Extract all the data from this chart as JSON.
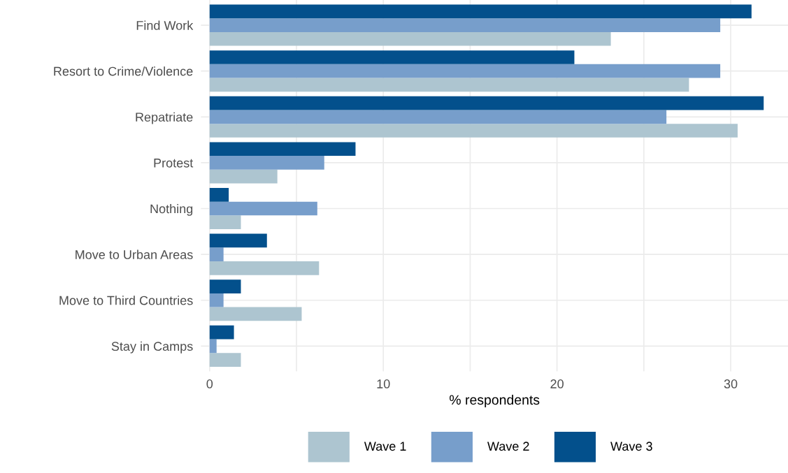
{
  "chart_data": {
    "type": "bar",
    "orientation": "horizontal",
    "xlabel": "% respondents",
    "categories": [
      "Find Work",
      "Resort to Crime/Violence",
      "Repatriate",
      "Protest",
      "Nothing",
      "Move to Urban Areas",
      "Move to Third Countries",
      "Stay in Camps"
    ],
    "series": [
      {
        "name": "Wave 1",
        "color": "#adc5d0",
        "values": [
          23.1,
          27.6,
          30.4,
          3.9,
          1.8,
          6.3,
          5.3,
          1.8
        ]
      },
      {
        "name": "Wave 2",
        "color": "#779ecb",
        "values": [
          29.4,
          29.4,
          26.3,
          6.6,
          6.2,
          0.8,
          0.8,
          0.4
        ]
      },
      {
        "name": "Wave 3",
        "color": "#03508c",
        "values": [
          31.2,
          21.0,
          31.9,
          8.4,
          1.1,
          3.3,
          1.8,
          1.4
        ]
      }
    ],
    "xlim": [
      -0.5,
      33.3
    ],
    "xticks": [
      0,
      {
        "value": 5,
        "label": null
      },
      10,
      {
        "value": 15,
        "label": null
      },
      20,
      {
        "value": 25,
        "label": null
      },
      30
    ],
    "grid": true,
    "legend": "bottom"
  }
}
